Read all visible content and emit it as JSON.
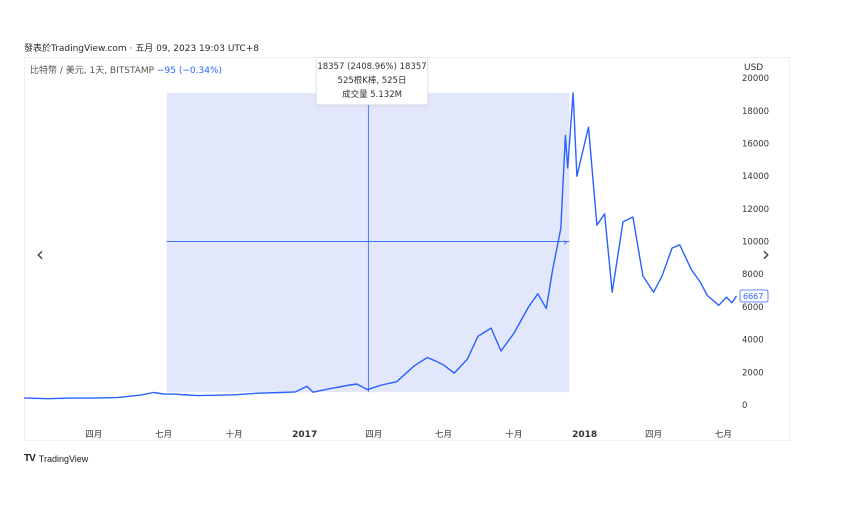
{
  "header": {
    "source": "發表於TradingView.com",
    "timestamp": "五月 09, 2023 19:03 UTC+8"
  },
  "symbol": {
    "name": "比特幣 / 美元, 1天, BITSTAMP",
    "change": "−95 (−0.34%)"
  },
  "axis_unit": "USD",
  "tooltip": {
    "line1": "18357 (2408.96%) 18357",
    "line2": "525根K棒, 525日",
    "line3": "成交量 5.132M"
  },
  "price_label": {
    "value": "6667",
    "color": "#2962ff"
  },
  "nav": {
    "left": "‹",
    "right": "›"
  },
  "footer": {
    "logo": "TradingView"
  },
  "colors": {
    "line": "#2962ff",
    "selection": "#dde3fa",
    "crosshair": "#2962ff"
  },
  "chart_data": {
    "type": "line",
    "title": "",
    "xlabel": "",
    "ylabel": "USD",
    "ylim": [
      -800,
      20500
    ],
    "xlim": [
      "2016-01-01",
      "2018-07-20"
    ],
    "yticks": [
      0,
      2000,
      4000,
      6000,
      8000,
      10000,
      12000,
      14000,
      16000,
      18000,
      20000
    ],
    "xticks": [
      {
        "date": "2016-04-01",
        "label": "四月"
      },
      {
        "date": "2016-07-01",
        "label": "七月"
      },
      {
        "date": "2016-10-01",
        "label": "十月"
      },
      {
        "date": "2017-01-01",
        "label": "2017"
      },
      {
        "date": "2017-04-01",
        "label": "四月"
      },
      {
        "date": "2017-07-01",
        "label": "七月"
      },
      {
        "date": "2017-10-01",
        "label": "十月"
      },
      {
        "date": "2018-01-01",
        "label": "2018"
      },
      {
        "date": "2018-04-01",
        "label": "四月"
      },
      {
        "date": "2018-07-01",
        "label": "七月"
      }
    ],
    "selection": {
      "start": "2016-07-05",
      "end": "2017-12-12",
      "ylow": 780,
      "yhigh": 19100
    },
    "crosshair": {
      "date": "2017-03-25",
      "price": 10000
    },
    "last_value": 6667,
    "series": [
      {
        "points": [
          [
            "2016-01-01",
            430
          ],
          [
            "2016-02-01",
            380
          ],
          [
            "2016-03-01",
            420
          ],
          [
            "2016-04-01",
            420
          ],
          [
            "2016-05-01",
            450
          ],
          [
            "2016-06-01",
            600
          ],
          [
            "2016-06-18",
            760
          ],
          [
            "2016-07-01",
            670
          ],
          [
            "2016-07-15",
            660
          ],
          [
            "2016-08-01",
            610
          ],
          [
            "2016-08-15",
            570
          ],
          [
            "2016-09-01",
            590
          ],
          [
            "2016-10-01",
            620
          ],
          [
            "2016-11-01",
            720
          ],
          [
            "2016-12-01",
            760
          ],
          [
            "2016-12-20",
            800
          ],
          [
            "2017-01-04",
            1140
          ],
          [
            "2017-01-12",
            780
          ],
          [
            "2017-02-01",
            980
          ],
          [
            "2017-03-01",
            1220
          ],
          [
            "2017-03-10",
            1280
          ],
          [
            "2017-03-24",
            940
          ],
          [
            "2017-04-10",
            1200
          ],
          [
            "2017-05-01",
            1420
          ],
          [
            "2017-05-24",
            2400
          ],
          [
            "2017-06-10",
            2900
          ],
          [
            "2017-06-20",
            2700
          ],
          [
            "2017-07-01",
            2450
          ],
          [
            "2017-07-15",
            1950
          ],
          [
            "2017-08-01",
            2800
          ],
          [
            "2017-08-15",
            4200
          ],
          [
            "2017-09-01",
            4700
          ],
          [
            "2017-09-14",
            3300
          ],
          [
            "2017-10-01",
            4400
          ],
          [
            "2017-10-20",
            6000
          ],
          [
            "2017-11-01",
            6800
          ],
          [
            "2017-11-12",
            5900
          ],
          [
            "2017-11-20",
            8200
          ],
          [
            "2017-12-01",
            10800
          ],
          [
            "2017-12-07",
            16500
          ],
          [
            "2017-12-10",
            14500
          ],
          [
            "2017-12-17",
            19100
          ],
          [
            "2017-12-22",
            14000
          ],
          [
            "2017-12-28",
            15200
          ],
          [
            "2018-01-06",
            17000
          ],
          [
            "2018-01-17",
            11000
          ],
          [
            "2018-01-27",
            11700
          ],
          [
            "2018-02-06",
            6900
          ],
          [
            "2018-02-20",
            11200
          ],
          [
            "2018-03-05",
            11500
          ],
          [
            "2018-03-18",
            7900
          ],
          [
            "2018-04-01",
            6900
          ],
          [
            "2018-04-12",
            7900
          ],
          [
            "2018-04-25",
            9600
          ],
          [
            "2018-05-05",
            9800
          ],
          [
            "2018-05-20",
            8300
          ],
          [
            "2018-06-01",
            7500
          ],
          [
            "2018-06-10",
            6700
          ],
          [
            "2018-06-25",
            6100
          ],
          [
            "2018-07-05",
            6600
          ],
          [
            "2018-07-12",
            6250
          ],
          [
            "2018-07-18",
            6667
          ]
        ]
      }
    ]
  }
}
